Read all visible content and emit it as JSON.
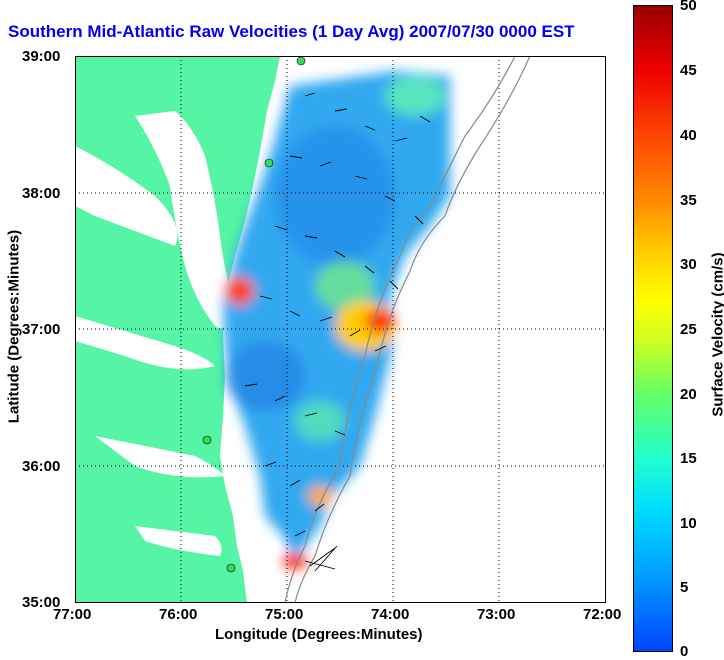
{
  "title": "Southern Mid-Atlantic Raw Velocities (1 Day Avg) 2007/07/30 0000 EST",
  "x_axis": {
    "label": "Longitude (Degrees:Minutes)",
    "ticks": [
      "77:00",
      "76:00",
      "75:00",
      "74:00",
      "73:00",
      "72:00"
    ]
  },
  "y_axis": {
    "label": "Latitude (Degrees:Minutes)",
    "ticks": [
      "39:00",
      "38:00",
      "37:00",
      "36:00",
      "35:00"
    ]
  },
  "colorbar": {
    "label": "Surface Velocity (cm/s)",
    "ticks": [
      "50",
      "45",
      "40",
      "35",
      "30",
      "25",
      "20",
      "15",
      "10",
      "5",
      "0"
    ]
  },
  "colors": {
    "land": "#55f5a5",
    "title": "#0000ee",
    "field_base": "#33a8f0",
    "hotspot": "#ff3300"
  }
}
